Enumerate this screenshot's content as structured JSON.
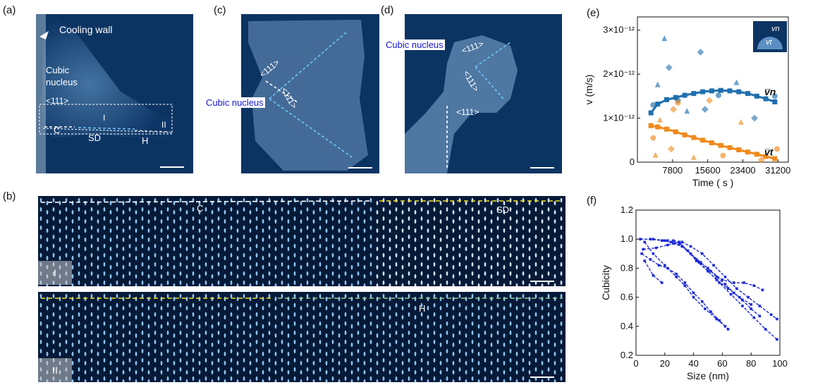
{
  "panels": {
    "a": {
      "label": "(a)",
      "cooling_wall": "Cooling wall",
      "cubic": "Cubic",
      "nucleus": "nucleus",
      "dir": "<111>",
      "roman1": "I",
      "roman2": "II",
      "c": "C",
      "sd": "SD",
      "h": "H"
    },
    "b": {
      "label": "(b)",
      "c": "C",
      "sd": "SD",
      "h": "H",
      "roman1": "I",
      "roman2": "II"
    },
    "c": {
      "label": "(c)",
      "cubic_nucleus": "Cubic nucleus",
      "dir1": "<111>",
      "dir2": "<111>"
    },
    "d": {
      "label": "(d)",
      "cubic_nucleus": "Cubic nucleus",
      "dir1": "<111>",
      "dir2": "<111>",
      "dir3": "<111>"
    },
    "e": {
      "label": "(e)",
      "inset_vn": "v",
      "inset_vn_sub": "n",
      "inset_vt": "v",
      "inset_vt_sub": "t"
    },
    "f": {
      "label": "(f)"
    }
  },
  "colors": {
    "micrograph_bg": "#0a2d57",
    "blue_series": "#1f6fae",
    "orange_series": "#f08a1c",
    "blue_lines": "#1c2ad6"
  },
  "chart_data": [
    {
      "id": "e",
      "type": "scatter",
      "xlabel": "Time ( s )",
      "ylabel": "v (m/s)",
      "xlim": [
        0,
        33500
      ],
      "ylim": [
        0,
        3.3e-12
      ],
      "xticks": [
        7800,
        15600,
        23400,
        31200
      ],
      "yticks": [
        0,
        1e-12,
        2e-12,
        3e-12
      ],
      "ytick_labels": [
        "0",
        "1×10⁻¹²",
        "2×10⁻¹²",
        "3×10⁻¹²"
      ],
      "series": [
        {
          "name": "v̅n",
          "color": "#1f6fae",
          "mean_x": [
            3000,
            4500,
            6500,
            8500,
            10500,
            12500,
            14500,
            16500,
            18500,
            20500,
            22500,
            24500,
            26500,
            28500,
            30500
          ],
          "mean_y": [
            1.12e-12,
            1.32e-12,
            1.42e-12,
            1.47e-12,
            1.52e-12,
            1.56e-12,
            1.6e-12,
            1.62e-12,
            1.63e-12,
            1.62e-12,
            1.6e-12,
            1.56e-12,
            1.5e-12,
            1.44e-12,
            1.37e-12
          ],
          "scatter_x": [
            3500,
            4500,
            7000,
            9000,
            11000,
            15000,
            18000,
            22000,
            26000,
            30500,
            6000,
            14000
          ],
          "scatter_y": [
            1.3e-12,
            1.75e-12,
            2.15e-12,
            1.4e-12,
            1.15e-12,
            1.2e-12,
            1.52e-12,
            1.8e-12,
            1e-12,
            1.5e-12,
            2.8e-12,
            2.5e-12
          ]
        },
        {
          "name": "v̅t",
          "color": "#f08a1c",
          "mean_x": [
            3000,
            4500,
            6500,
            8500,
            10500,
            12500,
            14500,
            16500,
            18500,
            20500,
            22500,
            24500,
            26500,
            28500,
            30500
          ],
          "mean_y": [
            8.3e-13,
            8e-13,
            7.5e-13,
            6.9e-13,
            6.2e-13,
            5.6e-13,
            5e-13,
            4.4e-13,
            3.8e-13,
            3.3e-13,
            2.8e-13,
            2.3e-13,
            1.8e-13,
            1.3e-13,
            8e-14
          ],
          "scatter_x": [
            3500,
            5000,
            7500,
            9000,
            12500,
            16000,
            19000,
            23000,
            27500,
            31000,
            4000,
            8000
          ],
          "scatter_y": [
            5.5e-13,
            9.5e-13,
            3e-13,
            1.35e-12,
            1e-13,
            1.4e-12,
            1.5e-13,
            9e-13,
            5e-14,
            3e-13,
            1.5e-13,
            1.2e-12
          ]
        }
      ]
    },
    {
      "id": "f",
      "type": "line",
      "xlabel": "Size (nm)",
      "ylabel": "Cubicity",
      "xlim": [
        0,
        100
      ],
      "ylim": [
        0.2,
        1.2
      ],
      "xticks": [
        0,
        20,
        40,
        60,
        80,
        100
      ],
      "yticks": [
        0.2,
        0.4,
        0.6,
        0.8,
        1.0,
        1.2
      ],
      "series": [
        {
          "x": [
            3,
            10,
            18,
            25,
            32,
            38,
            45,
            52,
            60,
            68,
            75,
            82,
            88
          ],
          "y": [
            1.0,
            1.0,
            0.99,
            0.98,
            0.95,
            0.9,
            0.84,
            0.78,
            0.72,
            0.7,
            0.7,
            0.68,
            0.65
          ]
        },
        {
          "x": [
            3,
            12,
            22,
            30,
            36,
            42,
            50,
            58,
            66,
            74,
            82,
            90,
            98
          ],
          "y": [
            1.0,
            1.0,
            0.99,
            0.97,
            0.92,
            0.85,
            0.78,
            0.7,
            0.62,
            0.54,
            0.46,
            0.38,
            0.31
          ]
        },
        {
          "x": [
            5,
            14,
            22,
            30,
            36,
            42,
            50,
            56,
            62,
            68,
            74,
            80,
            86
          ],
          "y": [
            0.93,
            0.94,
            0.96,
            0.98,
            0.92,
            0.86,
            0.8,
            0.74,
            0.69,
            0.63,
            0.58,
            0.52,
            0.47
          ]
        },
        {
          "x": [
            4,
            10,
            16,
            22,
            28,
            34,
            40,
            46,
            52,
            58,
            64
          ],
          "y": [
            0.9,
            0.86,
            0.82,
            0.8,
            0.76,
            0.7,
            0.63,
            0.57,
            0.5,
            0.44,
            0.38
          ]
        },
        {
          "x": [
            6,
            12,
            20,
            28,
            34,
            40,
            48,
            56,
            62
          ],
          "y": [
            0.98,
            0.9,
            0.82,
            0.74,
            0.68,
            0.6,
            0.52,
            0.45,
            0.4
          ]
        },
        {
          "x": [
            20,
            26,
            32,
            38,
            44,
            50,
            56,
            64,
            72,
            80
          ],
          "y": [
            0.99,
            0.97,
            0.95,
            0.9,
            0.84,
            0.78,
            0.72,
            0.66,
            0.6,
            0.55
          ]
        },
        {
          "x": [
            26,
            32,
            38,
            46,
            54,
            62,
            70,
            78,
            86,
            94,
            98
          ],
          "y": [
            0.99,
            0.98,
            0.95,
            0.9,
            0.82,
            0.74,
            0.66,
            0.6,
            0.54,
            0.48,
            0.45
          ]
        },
        {
          "x": [
            6,
            12,
            18
          ],
          "y": [
            0.85,
            0.75,
            0.7
          ]
        }
      ]
    }
  ]
}
